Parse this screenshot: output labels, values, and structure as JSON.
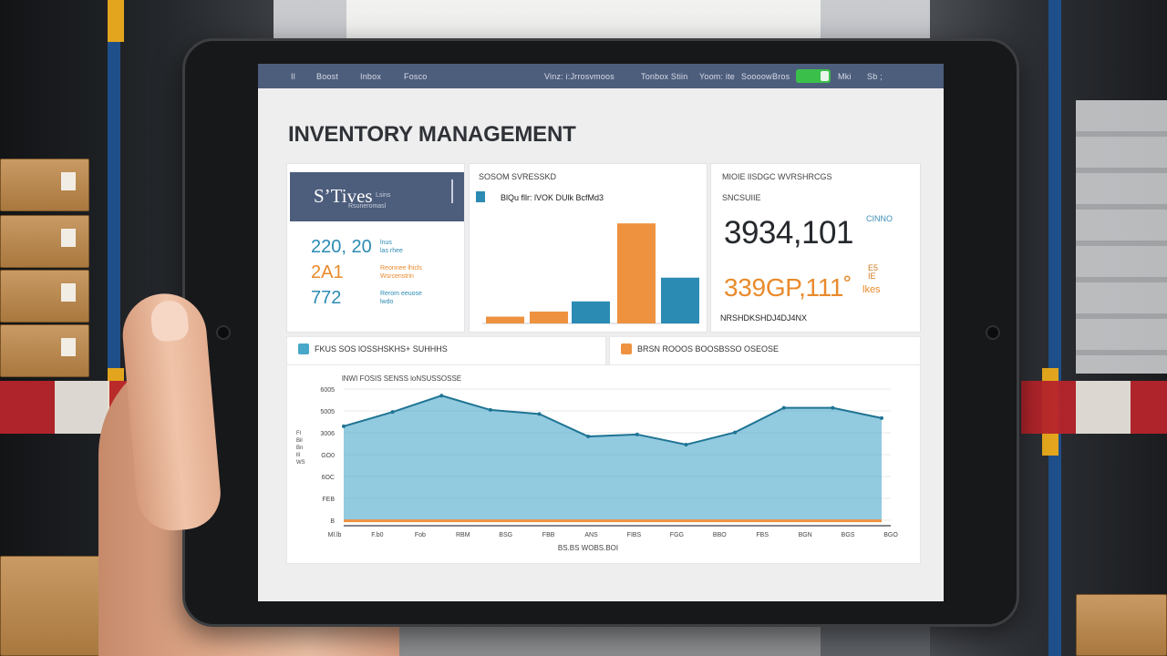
{
  "nav": {
    "items": [
      "Il",
      "Boost",
      "Inbox",
      "Fosco",
      "Vinz: i:Jrrosvmoos",
      "Tonbox Stiin",
      "Yoom: ite",
      "Soooow",
      "Bros",
      "Mki",
      "Sb ;"
    ]
  },
  "page": {
    "title": "INVENTORY MANAGEMENT"
  },
  "summary": {
    "header_big": "SʼTives",
    "header_small_1": "Lsins",
    "header_small_2": "Rsuneromasl",
    "stats": [
      {
        "value": "220, 20",
        "label": "lnus\nlas rhee",
        "color": "#2b8bb3"
      },
      {
        "value": "2A1",
        "label": "Reonnee lhicls\nWsrcenstrin",
        "color": "#e98a2c"
      },
      {
        "value": "772",
        "label": "Rerom eeuose\nlwdo",
        "color": "#2b8bb3"
      }
    ]
  },
  "bar_card": {
    "title": "SOSOM SVRESSKD",
    "subtitle": "BlQu fllr: lVOK DUlk BcfMd3"
  },
  "kpi": {
    "title": "MIOIE lISDGC WVRSHRCGS",
    "subtitle": "SNCSUIIE",
    "value_main": "3934,101",
    "badge_1": "CINNO",
    "value_secondary": "339GP,111˚",
    "badge_2": "E5\nIE",
    "badge_3": "lkes",
    "footer": "NRSHDKSHDJ4DJ4NX"
  },
  "legend": [
    {
      "label": "FKUS SOS lOSSHSKHS+ SUHHHS",
      "color": "#49a7c9"
    },
    {
      "label": "BRSN ROOOS BOOSBSSO OSEOSE",
      "color": "#ee9240"
    }
  ],
  "chart": {
    "title": "lNWI FOSIS SENSS loNSUSSOSSE",
    "x_axis_label": "BS.BS WOBS.BOI",
    "y_tick_labels": [
      "6005",
      "5005",
      "3006",
      "GO0",
      "6OC",
      "FEB",
      "B"
    ],
    "y_axis_label": "Fl\nBil\nBn\nlll\nWS",
    "x_tick_labels": [
      "Ml.lb",
      "F.b0",
      "Fob",
      "RBM",
      "BSG",
      "FBB",
      "ANS",
      "FIBS",
      "FGG",
      "BBO",
      "FBS",
      "BGN",
      "BGS",
      "BGO"
    ]
  },
  "chart_data": [
    {
      "type": "bar",
      "categories": [
        "1",
        "2",
        "3",
        "4",
        "5"
      ],
      "series": [
        {
          "values": [
            8,
            14,
            26,
            118,
            54
          ]
        }
      ],
      "bar_colors": [
        "#ee9240",
        "#ee9240",
        "#2b8bb3",
        "#ee9240",
        "#2b8bb3"
      ],
      "ylim": [
        0,
        130
      ]
    },
    {
      "type": "area",
      "x": [
        1,
        2,
        3,
        4,
        5,
        6,
        7,
        8,
        9,
        10,
        11,
        12
      ],
      "series": [
        {
          "values": [
            4600,
            5300,
            6100,
            5400,
            5200,
            4100,
            4200,
            3700,
            4300,
            5500,
            5500,
            5000
          ],
          "color": "#49a7c9"
        },
        {
          "values": [
            60,
            60,
            60,
            60,
            60,
            60,
            60,
            60,
            60,
            60,
            60,
            60
          ],
          "color": "#ee9240"
        }
      ],
      "ylim": [
        0,
        6600
      ]
    }
  ]
}
